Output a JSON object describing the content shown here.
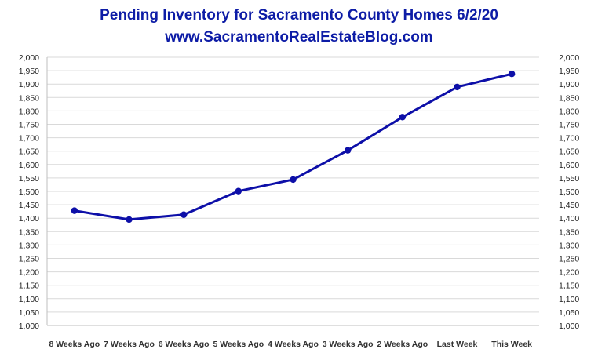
{
  "chart_data": {
    "type": "line",
    "title": "Pending Inventory for Sacramento County Homes 6/2/20",
    "subtitle": "www.SacramentoRealEstateBlog.com",
    "categories": [
      "8 Weeks Ago",
      "7 Weeks Ago",
      "6 Weeks Ago",
      "5 Weeks Ago",
      "4 Weeks Ago",
      "3 Weeks Ago",
      "2 Weeks Ago",
      "Last Week",
      "This Week"
    ],
    "series": [
      {
        "values": [
          1428,
          1395,
          1413,
          1501,
          1544,
          1653,
          1777,
          1889,
          1938
        ]
      }
    ],
    "ylim": [
      1000,
      2000
    ],
    "ytick_step": 50,
    "ytick_labels": [
      "1,000",
      "1,050",
      "1,100",
      "1,150",
      "1,200",
      "1,250",
      "1,300",
      "1,350",
      "1,400",
      "1,450",
      "1,500",
      "1,550",
      "1,600",
      "1,650",
      "1,700",
      "1,750",
      "1,800",
      "1,850",
      "1,900",
      "1,950",
      "2,000"
    ],
    "secondary_y_axis": true,
    "grid": "horizontal",
    "legend": "none",
    "highlight_category": "This Week",
    "colors": {
      "line": "#0d0fa8",
      "title": "#0d1ca6",
      "highlight_label": "#1a20b0",
      "grid": "#d9d9d9"
    }
  }
}
